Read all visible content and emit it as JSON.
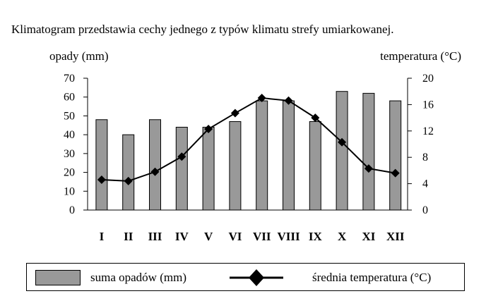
{
  "heading": "Klimatogram przedstawia cechy jednego z typów klimatu strefy umiarkowanej.",
  "chart_data": {
    "type": "bar+line",
    "categories": [
      "I",
      "II",
      "III",
      "IV",
      "V",
      "VI",
      "VII",
      "VIII",
      "IX",
      "X",
      "XI",
      "XII"
    ],
    "series": [
      {
        "name": "suma opadów (mm)",
        "type": "bar",
        "axis": "left",
        "values": [
          48,
          40,
          48,
          44,
          44,
          47,
          58,
          58,
          47,
          63,
          62,
          58
        ]
      },
      {
        "name": "średnia temperatura (°C)",
        "type": "line",
        "axis": "right",
        "values": [
          4.6,
          4.4,
          5.8,
          8.1,
          12.3,
          14.7,
          17.0,
          16.6,
          14.0,
          10.3,
          6.3,
          5.6
        ]
      }
    ],
    "ylabel_left": "opady (mm)",
    "ylabel_right": "temperatura (°C)",
    "ylim_left": [
      0,
      70
    ],
    "ylim_right": [
      0,
      20
    ],
    "yticks_left": [
      "0",
      "10",
      "20",
      "30",
      "40",
      "50",
      "60",
      "70"
    ],
    "yticks_right": [
      "0",
      "4",
      "8",
      "12",
      "16",
      "20"
    ],
    "grid": false,
    "legend_position": "bottom",
    "colors": {
      "bar": "#999999",
      "line": "#000000"
    }
  }
}
